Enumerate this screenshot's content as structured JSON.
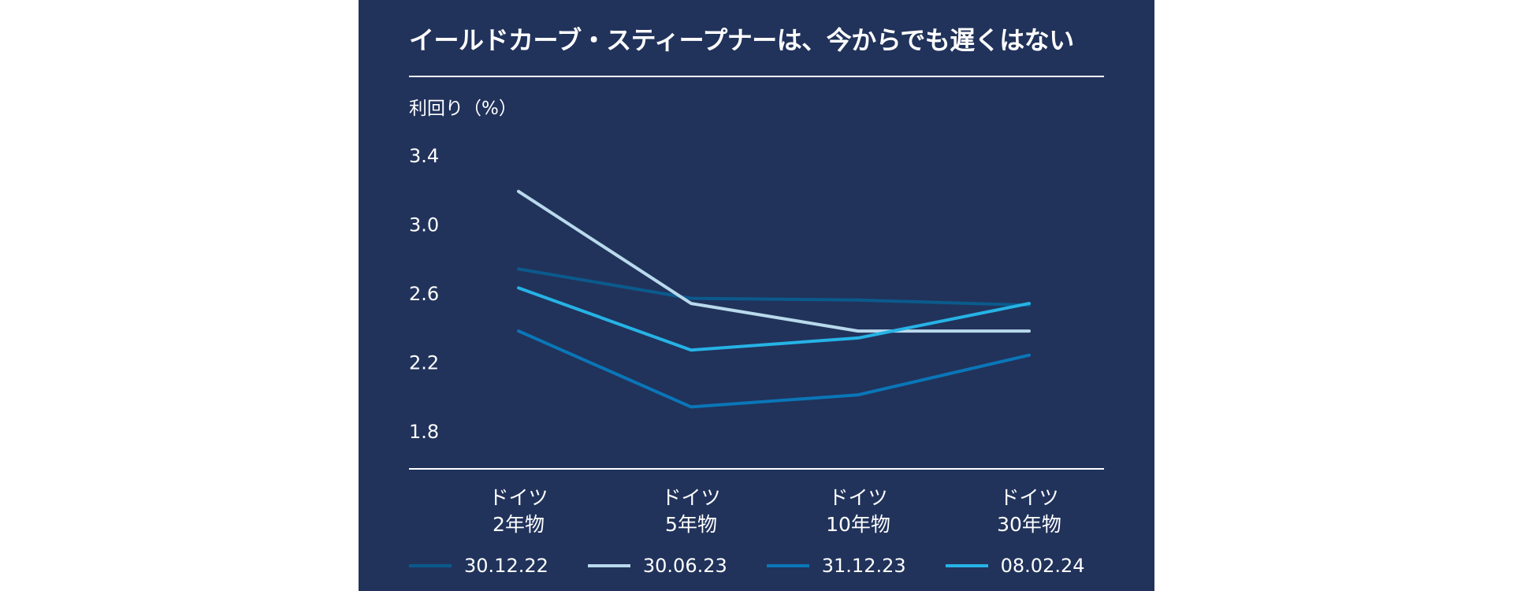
{
  "title": "イールドカーブ・スティープナーは、今からでも遅くはない",
  "chart_data": {
    "type": "line",
    "ylabel": "利回り（%）",
    "ylim": [
      1.6,
      3.4
    ],
    "yticks": [
      "3.4",
      "3.0",
      "2.6",
      "2.2",
      "1.8"
    ],
    "categories": [
      [
        "ドイツ",
        "2年物"
      ],
      [
        "ドイツ",
        "5年物"
      ],
      [
        "ドイツ",
        "10年物"
      ],
      [
        "ドイツ",
        "30年物"
      ]
    ],
    "series": [
      {
        "name": "30.12.22",
        "color": "#0b5a8c",
        "values": [
          2.74,
          2.57,
          2.56,
          2.53
        ]
      },
      {
        "name": "30.06.23",
        "color": "#b9d9ec",
        "values": [
          3.19,
          2.54,
          2.38,
          2.38
        ]
      },
      {
        "name": "31.12.23",
        "color": "#0a76b8",
        "values": [
          2.38,
          1.94,
          2.01,
          2.24
        ]
      },
      {
        "name": "08.02.24",
        "color": "#26b3e6",
        "values": [
          2.63,
          2.27,
          2.34,
          2.54
        ]
      }
    ],
    "grid": false,
    "legend_position": "bottom"
  }
}
